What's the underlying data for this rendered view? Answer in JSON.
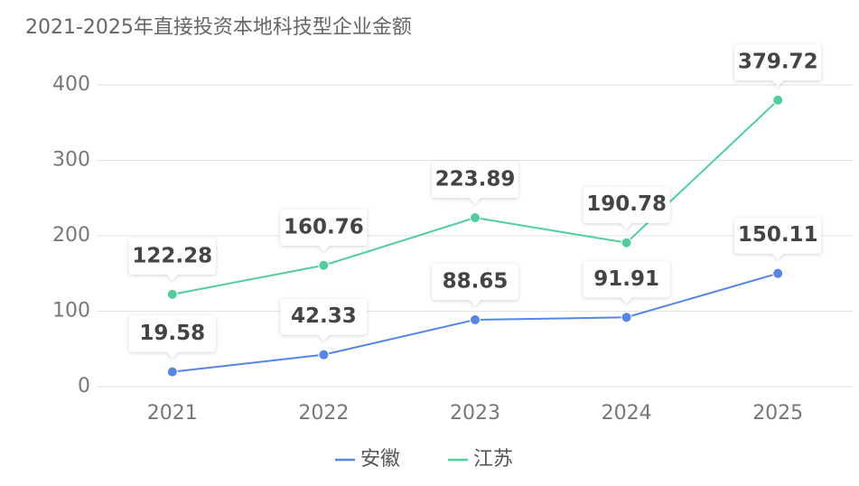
{
  "chart_data": {
    "type": "line",
    "title": "2021-2025年直接投资本地科技型企业金额",
    "categories": [
      "2021",
      "2022",
      "2023",
      "2024",
      "2025"
    ],
    "series": [
      {
        "name": "安徽",
        "color": "#5585e8",
        "values": [
          19.58,
          42.33,
          88.65,
          91.91,
          150.11
        ]
      },
      {
        "name": "江苏",
        "color": "#4fcf9a",
        "values": [
          122.28,
          160.76,
          223.89,
          190.78,
          379.72
        ]
      }
    ],
    "ylim": [
      0,
      400
    ],
    "yticks": [
      0,
      100,
      200,
      300,
      400
    ],
    "grid": true
  }
}
